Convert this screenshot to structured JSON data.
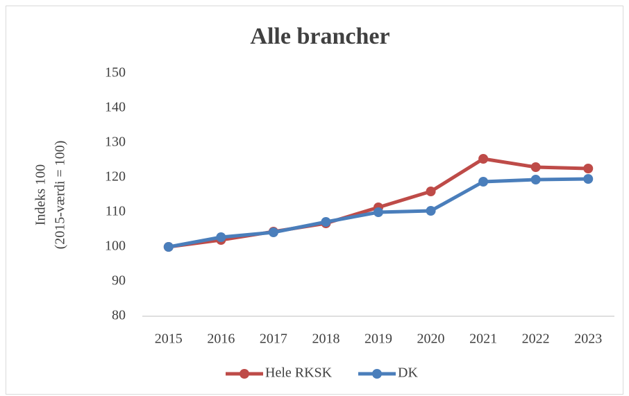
{
  "chart_data": {
    "type": "line",
    "title": "Alle brancher",
    "ylabel": [
      "Indeks 100",
      "(2015-værdi = 100)"
    ],
    "categories": [
      "2015",
      "2016",
      "2017",
      "2018",
      "2019",
      "2020",
      "2021",
      "2022",
      "2023"
    ],
    "series": [
      {
        "name": "Hele RKSK",
        "color": "#be4b48",
        "values": [
          100,
          102,
          104.4,
          106.8,
          111.4,
          116,
          125.4,
          123,
          122.6
        ]
      },
      {
        "name": "DK",
        "color": "#4a7ebb",
        "values": [
          100,
          102.8,
          104.2,
          107.2,
          110,
          110.4,
          118.8,
          119.4,
          119.6
        ]
      }
    ],
    "ylim": [
      80,
      150
    ],
    "yticks": [
      80,
      90,
      100,
      110,
      120,
      130,
      140,
      150
    ],
    "grid": false,
    "legend": "bottom"
  }
}
